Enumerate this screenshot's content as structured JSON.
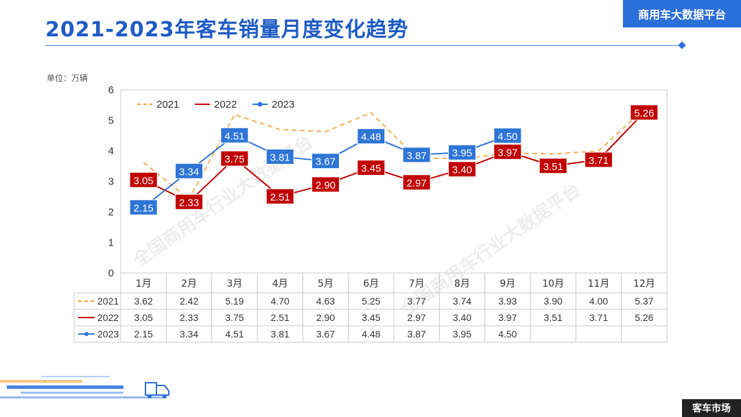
{
  "header": {
    "title": "2021-2023年客车销量月度变化趋势",
    "brand": "商用车大数据平台",
    "unit_label": "单位：万辆",
    "section_tag": "客车市场",
    "watermark": "全国商用车行业大数据平台"
  },
  "colors": {
    "accent": "#1f5bc5",
    "series_2021": "#f0a22e",
    "series_2022": "#c00000",
    "series_2023": "#2e75d6"
  },
  "icons": [
    "truck-graphic"
  ],
  "chart_data": {
    "type": "line",
    "title": "2021-2023年客车销量月度变化趋势",
    "ylabel": "单位：万辆",
    "ylim": [
      0,
      6
    ],
    "yticks": [
      "0",
      "1",
      "2",
      "3",
      "4",
      "5",
      "6"
    ],
    "categories": [
      "1月",
      "2月",
      "3月",
      "4月",
      "5月",
      "6月",
      "7月",
      "8月",
      "9月",
      "10月",
      "11月",
      "12月"
    ],
    "legend_position": "top-left",
    "grid": false,
    "series": [
      {
        "name": "2021",
        "style": "dashed",
        "labels_shown": false,
        "values": [
          3.62,
          2.42,
          5.19,
          4.7,
          4.63,
          5.25,
          3.77,
          3.74,
          3.93,
          3.9,
          4.0,
          5.37
        ]
      },
      {
        "name": "2022",
        "style": "solid",
        "labels_shown": true,
        "values": [
          3.05,
          2.33,
          3.75,
          2.51,
          2.9,
          3.45,
          2.97,
          3.4,
          3.97,
          3.51,
          3.71,
          5.26
        ]
      },
      {
        "name": "2023",
        "style": "solid-marker",
        "labels_shown": true,
        "values": [
          2.15,
          3.34,
          4.51,
          3.81,
          3.67,
          4.48,
          3.87,
          3.95,
          4.5,
          null,
          null,
          null
        ]
      }
    ],
    "table": {
      "rows": [
        {
          "series": "2021",
          "cells": [
            "3.62",
            "2.42",
            "5.19",
            "4.70",
            "4.63",
            "5.25",
            "3.77",
            "3.74",
            "3.93",
            "3.90",
            "4.00",
            "5.37"
          ]
        },
        {
          "series": "2022",
          "cells": [
            "3.05",
            "2.33",
            "3.75",
            "2.51",
            "2.90",
            "3.45",
            "2.97",
            "3.40",
            "3.97",
            "3.51",
            "3.71",
            "5.26"
          ]
        },
        {
          "series": "2023",
          "cells": [
            "2.15",
            "3.34",
            "4.51",
            "3.81",
            "3.67",
            "4.48",
            "3.87",
            "3.95",
            "4.50",
            "",
            "",
            ""
          ]
        }
      ]
    }
  }
}
